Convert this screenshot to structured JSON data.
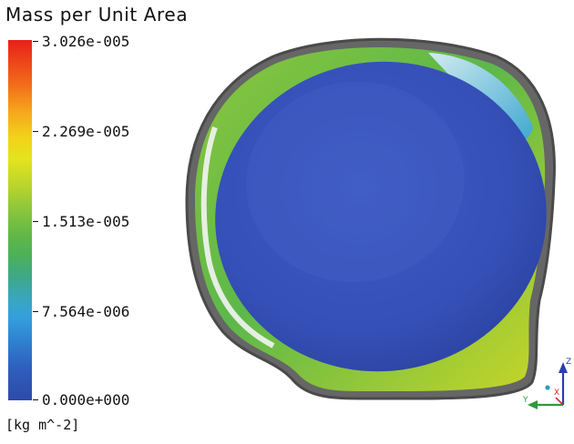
{
  "legend": {
    "title": "Mass per Unit Area",
    "units": "[kg m^-2]",
    "ticks": [
      "3.026e-005",
      "2.269e-005",
      "1.513e-005",
      "7.564e-006",
      "0.000e+000"
    ],
    "colors": {
      "max": "#e8201a",
      "mid_high": "#f2d21a",
      "mid": "#62b847",
      "mid_low": "#34a0dc",
      "min": "#2e4aa8"
    }
  },
  "triad": {
    "z_label": "Z",
    "y_label": "Y",
    "x_label": "X",
    "z_color": "#2b3fa8",
    "y_color": "#2e9a3a",
    "x_color": "#d22b2b"
  }
}
